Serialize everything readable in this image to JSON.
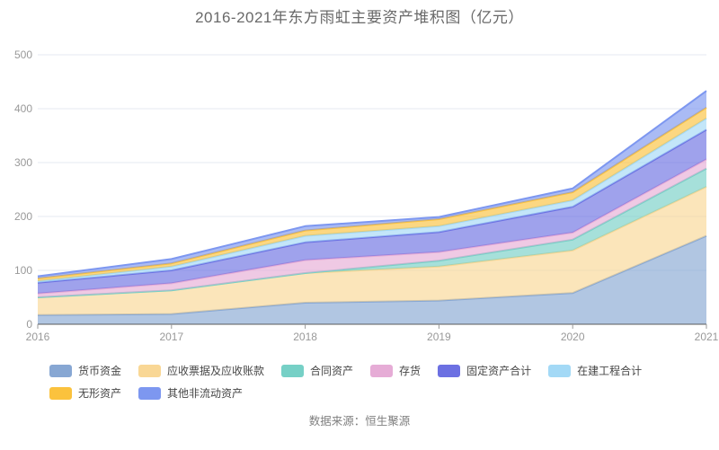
{
  "title": "2016-2021年东方雨虹主要资产堆积图（亿元）",
  "source": "数据来源：恒生聚源",
  "colors": {
    "axis_line": "#595959",
    "grid_line": "#e4e9f2",
    "tick_label": "#999999",
    "title_text": "#696969",
    "legend_text": "#464646",
    "source_text": "#7f7f7f",
    "background": "#ffffff"
  },
  "chart_data": {
    "type": "area",
    "stacked": true,
    "title": "2016-2021年东方雨虹主要资产堆积图（亿元）",
    "xlabel": "",
    "ylabel": "",
    "x": [
      2016,
      2017,
      2018,
      2019,
      2020,
      2021
    ],
    "y_ticks": [
      0,
      100,
      200,
      300,
      400,
      500
    ],
    "ylim": [
      0,
      500
    ],
    "grid": true,
    "legend_position": "bottom",
    "area_opacity": 0.65,
    "series": [
      {
        "name": "货币资金",
        "color": "#87a7d3",
        "values": [
          17,
          19,
          40,
          44,
          58,
          164
        ]
      },
      {
        "name": "应收票据及应收账款",
        "color": "#f9d795",
        "values": [
          33,
          44,
          55,
          63,
          79,
          91
        ]
      },
      {
        "name": "合同资产",
        "color": "#76d0c6",
        "values": [
          0,
          0,
          0,
          11,
          20,
          34
        ]
      },
      {
        "name": "存货",
        "color": "#e6acd6",
        "values": [
          7,
          13,
          24,
          16,
          13,
          17
        ]
      },
      {
        "name": "固定资产合计",
        "color": "#6c70e2",
        "values": [
          20,
          24,
          33,
          37,
          48,
          55
        ]
      },
      {
        "name": "在建工程合计",
        "color": "#a3d9f6",
        "values": [
          3,
          7,
          12,
          11,
          12,
          21
        ]
      },
      {
        "name": "无形资产",
        "color": "#fbc23d",
        "values": [
          5,
          6,
          10,
          13,
          15,
          20
        ]
      },
      {
        "name": "其他非流动资产",
        "color": "#7d97f0",
        "values": [
          4,
          8,
          8,
          4,
          7,
          31
        ]
      }
    ]
  }
}
